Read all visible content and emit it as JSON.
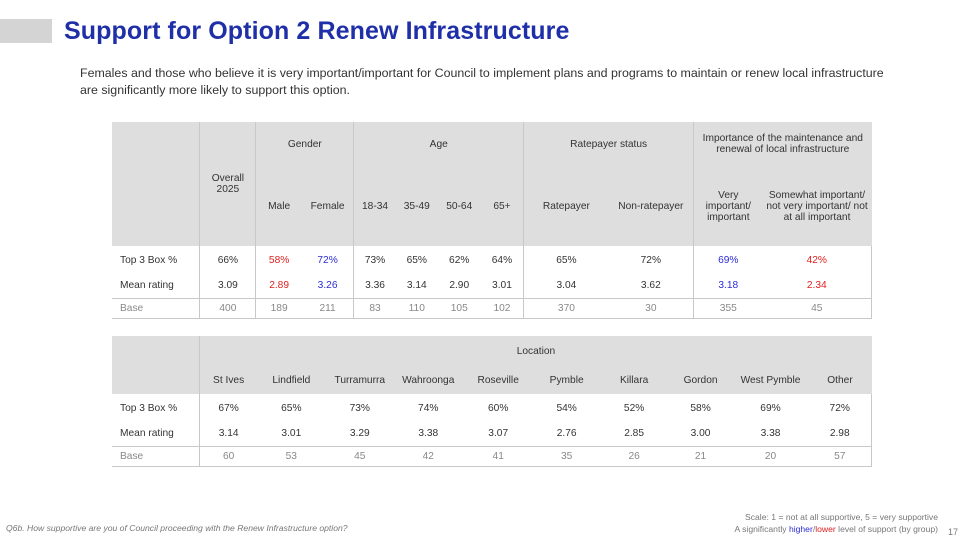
{
  "title": "Support for Option 2 Renew Infrastructure",
  "subtitle": "Females and those who believe it is very important/important for Council to implement plans and programs to maintain or renew local infrastructure are significantly more likely to support this option.",
  "table1": {
    "overall_header": "Overall 2025",
    "groups": {
      "gender": "Gender",
      "age": "Age",
      "ratepayer": "Ratepayer status",
      "importance": "Importance of the maintenance and renewal of local infrastructure"
    },
    "columns": [
      "Male",
      "Female",
      "18-34",
      "35-49",
      "50-64",
      "65+",
      "Ratepayer",
      "Non-ratepayer",
      "Very important/ important",
      "Somewhat important/ not very important/ not at all important"
    ],
    "rows": [
      {
        "label": "Top 3 Box %",
        "overall": "66%",
        "values": [
          "58%",
          "72%",
          "73%",
          "65%",
          "62%",
          "64%",
          "65%",
          "72%",
          "69%",
          "42%"
        ]
      },
      {
        "label": "Mean rating",
        "overall": "3.09",
        "values": [
          "2.89",
          "3.26",
          "3.36",
          "3.14",
          "2.90",
          "3.01",
          "3.04",
          "3.62",
          "3.18",
          "2.34"
        ]
      },
      {
        "label": "Base",
        "overall": "400",
        "values": [
          "189",
          "211",
          "83",
          "110",
          "105",
          "102",
          "370",
          "30",
          "355",
          "45"
        ]
      }
    ]
  },
  "table2": {
    "group": "Location",
    "columns": [
      "St Ives",
      "Lindfield",
      "Turramurra",
      "Wahroonga",
      "Roseville",
      "Pymble",
      "Killara",
      "Gordon",
      "West Pymble",
      "Other"
    ],
    "rows": [
      {
        "label": "Top 3 Box %",
        "values": [
          "67%",
          "65%",
          "73%",
          "74%",
          "60%",
          "54%",
          "52%",
          "58%",
          "69%",
          "72%"
        ]
      },
      {
        "label": "Mean rating",
        "values": [
          "3.14",
          "3.01",
          "3.29",
          "3.38",
          "3.07",
          "2.76",
          "2.85",
          "3.00",
          "3.38",
          "2.98"
        ]
      },
      {
        "label": "Base",
        "values": [
          "60",
          "53",
          "45",
          "42",
          "41",
          "35",
          "26",
          "21",
          "20",
          "57"
        ]
      }
    ]
  },
  "colors": {
    "significantly_higher": "#2b2bd6",
    "significantly_lower": "#e02020",
    "title": "#1f2fa8"
  },
  "footer": {
    "question": "Q6b. How supportive are you of Council proceeding with the Renew Infrastructure option?",
    "scale": "Scale: 1 = not at all supportive, 5 = very supportive",
    "legend_prefix": "A significantly ",
    "legend_higher": "higher",
    "legend_sep": "/",
    "legend_lower": "lower",
    "legend_suffix": " level of support (by group)",
    "page_number": "17"
  }
}
